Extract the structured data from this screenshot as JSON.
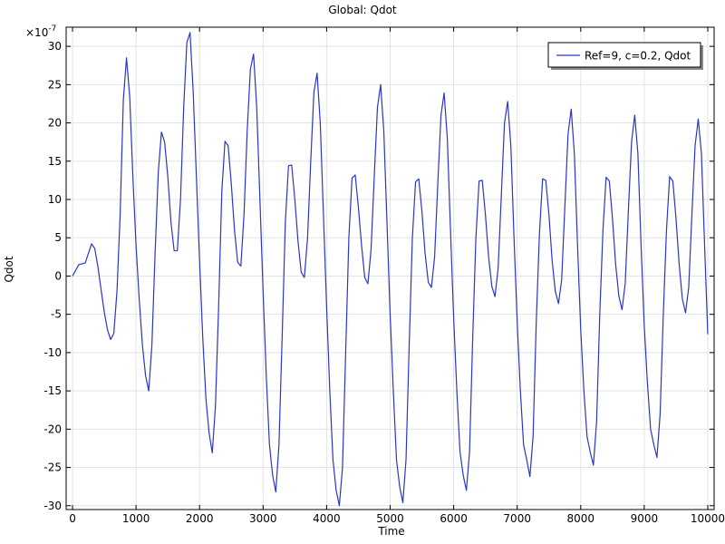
{
  "chart_data": {
    "type": "line",
    "title": "Global: Qdot",
    "xlabel": "Time",
    "ylabel": "Qdot",
    "y_multiplier_label": "×10",
    "y_multiplier_exponent": "-7",
    "xlim": [
      -100,
      10100
    ],
    "ylim": [
      -30.5,
      32.5
    ],
    "xticks": [
      0,
      1000,
      2000,
      3000,
      4000,
      5000,
      6000,
      7000,
      8000,
      9000,
      10000
    ],
    "yticks": [
      -30,
      -25,
      -20,
      -15,
      -10,
      -5,
      0,
      5,
      10,
      15,
      20,
      25,
      30
    ],
    "grid": true,
    "legend_position": "top-right",
    "colors": {
      "series": "#2b35c8",
      "grid": "#e3e3e3",
      "axis": "#000000"
    },
    "series": [
      {
        "name": "Ref=9, c=0.2, Qdot",
        "points": [
          [
            0,
            0
          ],
          [
            100,
            1.5
          ],
          [
            200,
            1.7
          ],
          [
            300,
            4.2
          ],
          [
            350,
            3.6
          ],
          [
            400,
            1.2
          ],
          [
            450,
            -1.8
          ],
          [
            500,
            -4.7
          ],
          [
            550,
            -7.0
          ],
          [
            600,
            -8.3
          ],
          [
            650,
            -7.5
          ],
          [
            700,
            -2.0
          ],
          [
            750,
            8.0
          ],
          [
            800,
            23.0
          ],
          [
            850,
            28.5
          ],
          [
            900,
            23.5
          ],
          [
            950,
            13.0
          ],
          [
            1000,
            4.0
          ],
          [
            1050,
            -3.0
          ],
          [
            1100,
            -9.0
          ],
          [
            1150,
            -13.0
          ],
          [
            1200,
            -15.0
          ],
          [
            1250,
            -9.0
          ],
          [
            1300,
            3.0
          ],
          [
            1350,
            13.5
          ],
          [
            1400,
            18.8
          ],
          [
            1450,
            17.5
          ],
          [
            1500,
            13.0
          ],
          [
            1550,
            7.0
          ],
          [
            1600,
            3.3
          ],
          [
            1650,
            3.3
          ],
          [
            1700,
            10.0
          ],
          [
            1750,
            22.0
          ],
          [
            1800,
            30.5
          ],
          [
            1850,
            31.8
          ],
          [
            1900,
            24.0
          ],
          [
            1950,
            13.0
          ],
          [
            2000,
            2.0
          ],
          [
            2050,
            -8.0
          ],
          [
            2100,
            -16.0
          ],
          [
            2150,
            -20.5
          ],
          [
            2200,
            -23.1
          ],
          [
            2250,
            -17.0
          ],
          [
            2300,
            -4.0
          ],
          [
            2350,
            11.0
          ],
          [
            2400,
            17.6
          ],
          [
            2450,
            17.0
          ],
          [
            2500,
            12.0
          ],
          [
            2550,
            6.0
          ],
          [
            2600,
            1.8
          ],
          [
            2650,
            1.3
          ],
          [
            2700,
            8.0
          ],
          [
            2750,
            19.0
          ],
          [
            2800,
            27.0
          ],
          [
            2850,
            29.0
          ],
          [
            2900,
            22.0
          ],
          [
            2950,
            10.0
          ],
          [
            3000,
            -2.0
          ],
          [
            3050,
            -13.0
          ],
          [
            3100,
            -22.0
          ],
          [
            3150,
            -26.0
          ],
          [
            3200,
            -28.2
          ],
          [
            3250,
            -22.0
          ],
          [
            3300,
            -8.0
          ],
          [
            3350,
            7.0
          ],
          [
            3400,
            14.4
          ],
          [
            3450,
            14.5
          ],
          [
            3500,
            10.0
          ],
          [
            3550,
            4.5
          ],
          [
            3600,
            0.5
          ],
          [
            3650,
            -0.2
          ],
          [
            3700,
            5.0
          ],
          [
            3750,
            15.0
          ],
          [
            3800,
            24.0
          ],
          [
            3850,
            26.5
          ],
          [
            3900,
            20.0
          ],
          [
            3950,
            8.0
          ],
          [
            4000,
            -4.0
          ],
          [
            4050,
            -15.0
          ],
          [
            4100,
            -24.0
          ],
          [
            4150,
            -28.0
          ],
          [
            4200,
            -30.0
          ],
          [
            4250,
            -25.0
          ],
          [
            4300,
            -10.0
          ],
          [
            4350,
            5.0
          ],
          [
            4400,
            12.8
          ],
          [
            4450,
            13.2
          ],
          [
            4500,
            9.0
          ],
          [
            4550,
            4.0
          ],
          [
            4600,
            -0.2
          ],
          [
            4650,
            -1.0
          ],
          [
            4700,
            3.5
          ],
          [
            4750,
            13.0
          ],
          [
            4800,
            22.0
          ],
          [
            4850,
            25.0
          ],
          [
            4900,
            19.0
          ],
          [
            4950,
            7.0
          ],
          [
            5000,
            -5.0
          ],
          [
            5050,
            -15.0
          ],
          [
            5100,
            -24.0
          ],
          [
            5150,
            -27.5
          ],
          [
            5200,
            -29.6
          ],
          [
            5250,
            -24.0
          ],
          [
            5300,
            -9.0
          ],
          [
            5350,
            5.0
          ],
          [
            5400,
            12.3
          ],
          [
            5450,
            12.7
          ],
          [
            5500,
            8.5
          ],
          [
            5550,
            3.0
          ],
          [
            5600,
            -0.8
          ],
          [
            5650,
            -1.5
          ],
          [
            5700,
            2.5
          ],
          [
            5750,
            12.0
          ],
          [
            5800,
            21.0
          ],
          [
            5850,
            23.9
          ],
          [
            5900,
            18.0
          ],
          [
            5950,
            6.0
          ],
          [
            6000,
            -5.5
          ],
          [
            6050,
            -15.0
          ],
          [
            6100,
            -23.0
          ],
          [
            6150,
            -26.0
          ],
          [
            6200,
            -28.0
          ],
          [
            6250,
            -23.0
          ],
          [
            6300,
            -8.0
          ],
          [
            6350,
            5.0
          ],
          [
            6400,
            12.4
          ],
          [
            6450,
            12.5
          ],
          [
            6500,
            8.0
          ],
          [
            6550,
            2.5
          ],
          [
            6600,
            -1.3
          ],
          [
            6650,
            -2.7
          ],
          [
            6700,
            1.0
          ],
          [
            6750,
            10.5
          ],
          [
            6800,
            20.0
          ],
          [
            6850,
            22.8
          ],
          [
            6900,
            17.0
          ],
          [
            6950,
            5.0
          ],
          [
            7000,
            -6.0
          ],
          [
            7050,
            -15.0
          ],
          [
            7100,
            -22.0
          ],
          [
            7150,
            -24.0
          ],
          [
            7200,
            -26.2
          ],
          [
            7250,
            -21.0
          ],
          [
            7300,
            -6.0
          ],
          [
            7350,
            5.5
          ],
          [
            7400,
            12.7
          ],
          [
            7450,
            12.5
          ],
          [
            7500,
            8.0
          ],
          [
            7550,
            2.0
          ],
          [
            7600,
            -2.0
          ],
          [
            7650,
            -3.6
          ],
          [
            7700,
            -0.5
          ],
          [
            7750,
            9.0
          ],
          [
            7800,
            18.5
          ],
          [
            7850,
            21.8
          ],
          [
            7900,
            16.0
          ],
          [
            7950,
            4.0
          ],
          [
            8000,
            -7.0
          ],
          [
            8050,
            -15.0
          ],
          [
            8100,
            -21.0
          ],
          [
            8150,
            -23.0
          ],
          [
            8200,
            -24.7
          ],
          [
            8250,
            -19.0
          ],
          [
            8300,
            -5.0
          ],
          [
            8350,
            6.0
          ],
          [
            8400,
            12.9
          ],
          [
            8450,
            12.4
          ],
          [
            8500,
            7.5
          ],
          [
            8550,
            1.5
          ],
          [
            8600,
            -2.6
          ],
          [
            8650,
            -4.4
          ],
          [
            8700,
            -1.0
          ],
          [
            8750,
            8.5
          ],
          [
            8800,
            17.5
          ],
          [
            8850,
            21.0
          ],
          [
            8900,
            16.0
          ],
          [
            8950,
            4.0
          ],
          [
            9000,
            -6.5
          ],
          [
            9050,
            -14.0
          ],
          [
            9100,
            -20.0
          ],
          [
            9150,
            -22.0
          ],
          [
            9200,
            -23.7
          ],
          [
            9250,
            -18.0
          ],
          [
            9300,
            -5.0
          ],
          [
            9350,
            6.0
          ],
          [
            9400,
            13.0
          ],
          [
            9450,
            12.4
          ],
          [
            9500,
            7.5
          ],
          [
            9550,
            1.5
          ],
          [
            9600,
            -3.0
          ],
          [
            9650,
            -4.8
          ],
          [
            9700,
            -1.5
          ],
          [
            9750,
            8.0
          ],
          [
            9800,
            17.0
          ],
          [
            9850,
            20.5
          ],
          [
            9900,
            16.0
          ],
          [
            9950,
            4.0
          ],
          [
            10000,
            -7.6
          ]
        ]
      }
    ]
  }
}
